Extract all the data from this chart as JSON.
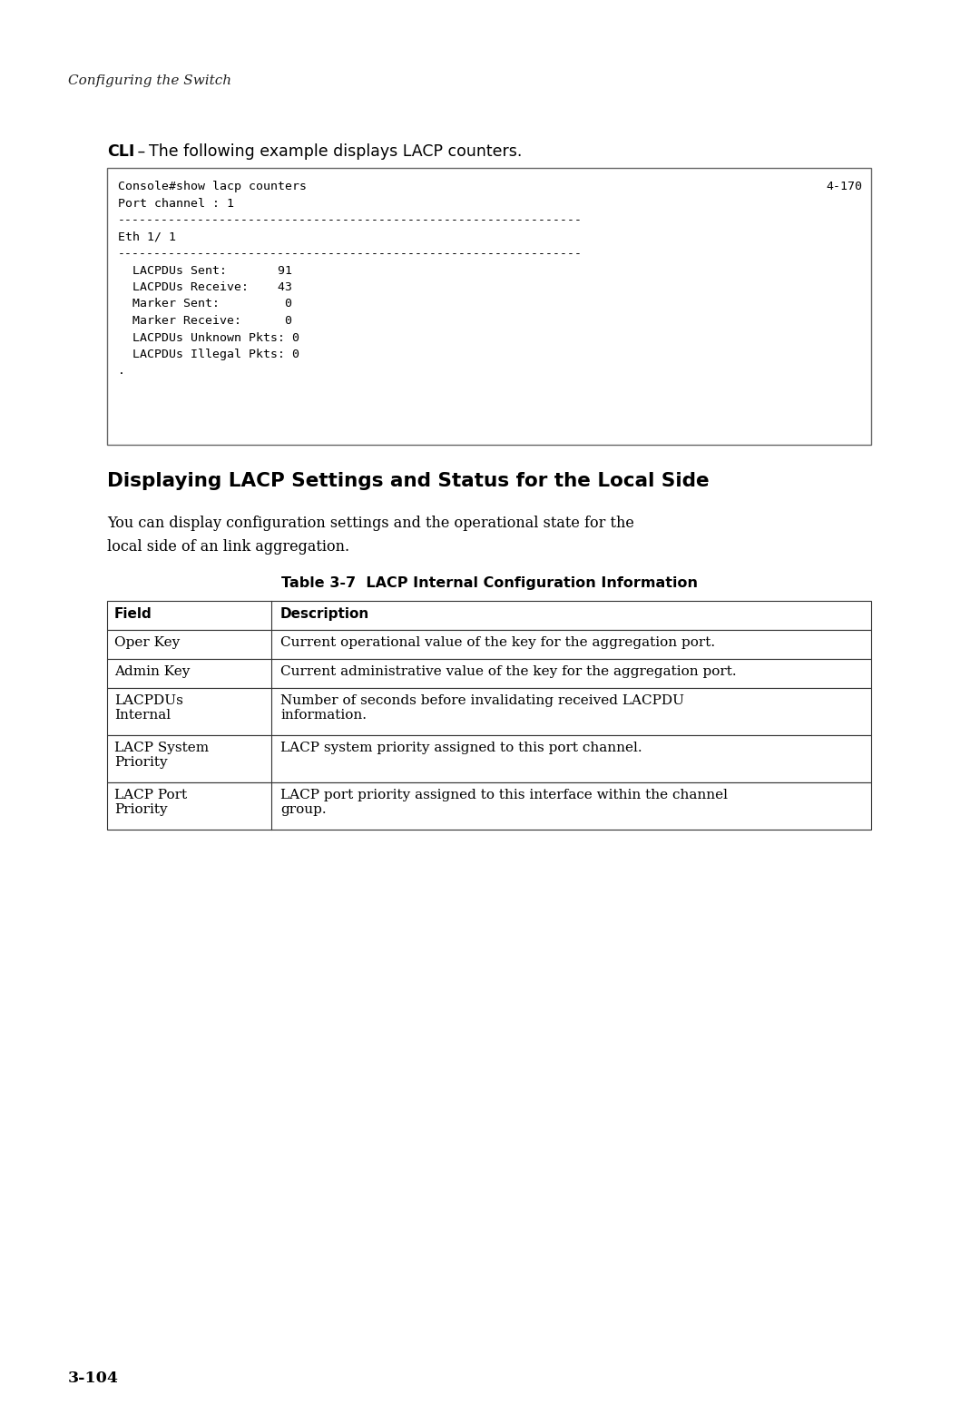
{
  "page_bg": "#ffffff",
  "header_text": "Configuring the Switch",
  "cli_label": "CLI",
  "cli_dash": " – ",
  "cli_rest": "The following example displays LACP counters.",
  "code_lines": [
    [
      "Console#show lacp counters",
      "4-170"
    ],
    [
      "Port channel : 1",
      ""
    ],
    [
      "----------------------------------------------------------------",
      ""
    ],
    [
      "Eth 1/ 1",
      ""
    ],
    [
      "----------------------------------------------------------------",
      ""
    ],
    [
      "  LACPDUs Sent:       91",
      ""
    ],
    [
      "  LACPDUs Receive:    43",
      ""
    ],
    [
      "  Marker Sent:         0",
      ""
    ],
    [
      "  Marker Receive:      0",
      ""
    ],
    [
      "  LACPDUs Unknown Pkts: 0",
      ""
    ],
    [
      "  LACPDUs Illegal Pkts: 0",
      ""
    ],
    [
      ".",
      ""
    ]
  ],
  "section_title": "Displaying LACP Settings and Status for the Local Side",
  "body_line1": "You can display configuration settings and the operational state for the",
  "body_line2": "local side of an link aggregation.",
  "table_caption": "Table 3-7  LACP Internal Configuration Information",
  "table_rows": [
    [
      "Field",
      "Description",
      true
    ],
    [
      "Oper Key",
      "Current operational value of the key for the aggregation port.",
      false
    ],
    [
      "Admin Key",
      "Current administrative value of the key for the aggregation port.",
      false
    ],
    [
      "LACPDUs\nInternal",
      "Number of seconds before invalidating received LACPDU\ninformation.",
      false
    ],
    [
      "LACP System\nPriority",
      "LACP system priority assigned to this port channel.",
      false
    ],
    [
      "LACP Port\nPriority",
      "LACP port priority assigned to this interface within the channel\ngroup.",
      false
    ]
  ],
  "footer": "3-104"
}
